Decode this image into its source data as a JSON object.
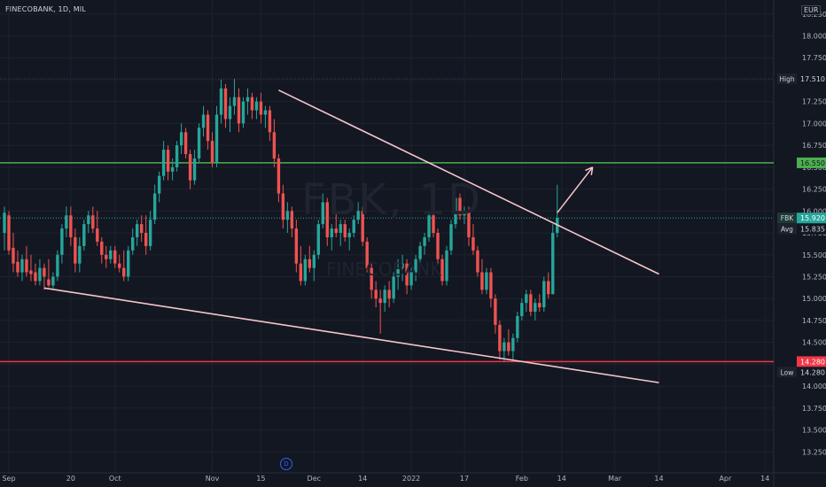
{
  "header": {
    "ticker_label": "FINECOBANK, 1D, MIL",
    "currency": "EUR"
  },
  "watermark": {
    "symbol": "FBK, 1D",
    "name": "FINECOBANK"
  },
  "markers": {
    "dividend_label": "D"
  },
  "colors": {
    "background": "#131722",
    "up": "#26a69a",
    "down": "#ef5350",
    "grid": "#1e222d",
    "axis_text": "#b2b5be",
    "resistance": "#4caf50",
    "support": "#f23645",
    "trendline": "#f5c6cb",
    "price_line": "#26a69a"
  },
  "chart_data": {
    "type": "candlestick",
    "title": "",
    "xlabel": "",
    "ylabel": "",
    "ylim": [
      12.95,
      18.4
    ],
    "yticks": [
      13.0,
      13.25,
      13.5,
      13.75,
      14.0,
      14.25,
      14.5,
      14.75,
      15.0,
      15.25,
      15.5,
      15.75,
      16.0,
      16.25,
      16.5,
      16.75,
      17.0,
      17.25,
      17.5,
      17.75,
      18.0,
      18.25
    ],
    "ytick_labels": [
      "13.000",
      "13.250",
      "13.500",
      "13.750",
      "14.000",
      "14.250",
      "14.500",
      "14.750",
      "15.000",
      "15.250",
      "15.500",
      "15.750",
      "16.000",
      "16.250",
      "16.500",
      "16.750",
      "17.000",
      "17.250",
      "17.500",
      "17.750",
      "18.000",
      "18.250"
    ],
    "xlim": [
      0,
      178
    ],
    "xticks": [
      {
        "x": 1,
        "label": "Sep"
      },
      {
        "x": 15,
        "label": "20"
      },
      {
        "x": 25,
        "label": "Oct"
      },
      {
        "x": 47,
        "label": "Nov"
      },
      {
        "x": 58,
        "label": "15"
      },
      {
        "x": 70,
        "label": "Dec"
      },
      {
        "x": 81,
        "label": "14"
      },
      {
        "x": 92,
        "label": "2022"
      },
      {
        "x": 104,
        "label": "17"
      },
      {
        "x": 117,
        "label": "Feb"
      },
      {
        "x": 126,
        "label": "14"
      },
      {
        "x": 138,
        "label": "Mar"
      },
      {
        "x": 148,
        "label": "14"
      },
      {
        "x": 163,
        "label": "Apr"
      },
      {
        "x": 172,
        "label": "14"
      }
    ],
    "candles": [
      {
        "x": 0,
        "o": 15.75,
        "h": 16.05,
        "l": 15.55,
        "c": 15.98
      },
      {
        "x": 1,
        "o": 15.95,
        "h": 16.0,
        "l": 15.5,
        "c": 15.55
      },
      {
        "x": 2,
        "o": 15.58,
        "h": 15.75,
        "l": 15.3,
        "c": 15.4
      },
      {
        "x": 3,
        "o": 15.42,
        "h": 15.55,
        "l": 15.25,
        "c": 15.3
      },
      {
        "x": 4,
        "o": 15.3,
        "h": 15.5,
        "l": 15.2,
        "c": 15.45
      },
      {
        "x": 5,
        "o": 15.45,
        "h": 15.6,
        "l": 15.25,
        "c": 15.3
      },
      {
        "x": 6,
        "o": 15.32,
        "h": 15.5,
        "l": 15.2,
        "c": 15.28
      },
      {
        "x": 7,
        "o": 15.3,
        "h": 15.4,
        "l": 15.15,
        "c": 15.2
      },
      {
        "x": 8,
        "o": 15.2,
        "h": 15.45,
        "l": 15.15,
        "c": 15.35
      },
      {
        "x": 9,
        "o": 15.35,
        "h": 15.4,
        "l": 15.1,
        "c": 15.25
      },
      {
        "x": 10,
        "o": 15.22,
        "h": 15.45,
        "l": 15.13,
        "c": 15.15
      },
      {
        "x": 11,
        "o": 15.15,
        "h": 15.3,
        "l": 15.1,
        "c": 15.25
      },
      {
        "x": 12,
        "o": 15.25,
        "h": 15.55,
        "l": 15.2,
        "c": 15.5
      },
      {
        "x": 13,
        "o": 15.5,
        "h": 15.85,
        "l": 15.4,
        "c": 15.8
      },
      {
        "x": 14,
        "o": 15.8,
        "h": 16.05,
        "l": 15.7,
        "c": 15.95
      },
      {
        "x": 15,
        "o": 15.95,
        "h": 16.05,
        "l": 15.6,
        "c": 15.7
      },
      {
        "x": 16,
        "o": 15.7,
        "h": 15.8,
        "l": 15.3,
        "c": 15.4
      },
      {
        "x": 17,
        "o": 15.4,
        "h": 15.7,
        "l": 15.3,
        "c": 15.6
      },
      {
        "x": 18,
        "o": 15.6,
        "h": 15.9,
        "l": 15.55,
        "c": 15.85
      },
      {
        "x": 19,
        "o": 15.85,
        "h": 16.0,
        "l": 15.75,
        "c": 15.95
      },
      {
        "x": 20,
        "o": 15.95,
        "h": 16.05,
        "l": 15.75,
        "c": 15.8
      },
      {
        "x": 21,
        "o": 15.8,
        "h": 16.0,
        "l": 15.6,
        "c": 15.65
      },
      {
        "x": 22,
        "o": 15.65,
        "h": 15.7,
        "l": 15.4,
        "c": 15.5
      },
      {
        "x": 23,
        "o": 15.5,
        "h": 15.6,
        "l": 15.35,
        "c": 15.45
      },
      {
        "x": 24,
        "o": 15.45,
        "h": 15.6,
        "l": 15.4,
        "c": 15.55
      },
      {
        "x": 25,
        "o": 15.55,
        "h": 15.6,
        "l": 15.35,
        "c": 15.4
      },
      {
        "x": 26,
        "o": 15.4,
        "h": 15.5,
        "l": 15.3,
        "c": 15.35
      },
      {
        "x": 27,
        "o": 15.35,
        "h": 15.55,
        "l": 15.2,
        "c": 15.25
      },
      {
        "x": 28,
        "o": 15.25,
        "h": 15.6,
        "l": 15.2,
        "c": 15.55
      },
      {
        "x": 29,
        "o": 15.55,
        "h": 15.8,
        "l": 15.5,
        "c": 15.7
      },
      {
        "x": 30,
        "o": 15.7,
        "h": 15.9,
        "l": 15.6,
        "c": 15.85
      },
      {
        "x": 31,
        "o": 15.85,
        "h": 15.95,
        "l": 15.65,
        "c": 15.75
      },
      {
        "x": 32,
        "o": 15.75,
        "h": 15.95,
        "l": 15.5,
        "c": 15.6
      },
      {
        "x": 33,
        "o": 15.6,
        "h": 16.0,
        "l": 15.55,
        "c": 15.9
      },
      {
        "x": 34,
        "o": 15.9,
        "h": 16.3,
        "l": 15.85,
        "c": 16.2
      },
      {
        "x": 35,
        "o": 16.2,
        "h": 16.45,
        "l": 16.1,
        "c": 16.4
      },
      {
        "x": 36,
        "o": 16.4,
        "h": 16.8,
        "l": 16.35,
        "c": 16.7
      },
      {
        "x": 37,
        "o": 16.7,
        "h": 16.75,
        "l": 16.35,
        "c": 16.45
      },
      {
        "x": 38,
        "o": 16.45,
        "h": 16.6,
        "l": 16.35,
        "c": 16.5
      },
      {
        "x": 39,
        "o": 16.5,
        "h": 16.8,
        "l": 16.45,
        "c": 16.75
      },
      {
        "x": 40,
        "o": 16.75,
        "h": 17.0,
        "l": 16.65,
        "c": 16.9
      },
      {
        "x": 41,
        "o": 16.9,
        "h": 16.95,
        "l": 16.6,
        "c": 16.65
      },
      {
        "x": 42,
        "o": 16.65,
        "h": 16.7,
        "l": 16.25,
        "c": 16.35
      },
      {
        "x": 43,
        "o": 16.35,
        "h": 16.7,
        "l": 16.3,
        "c": 16.6
      },
      {
        "x": 44,
        "o": 16.6,
        "h": 17.0,
        "l": 16.55,
        "c": 16.95
      },
      {
        "x": 45,
        "o": 16.95,
        "h": 17.2,
        "l": 16.85,
        "c": 17.1
      },
      {
        "x": 46,
        "o": 17.1,
        "h": 17.15,
        "l": 16.7,
        "c": 16.8
      },
      {
        "x": 47,
        "o": 16.8,
        "h": 16.9,
        "l": 16.5,
        "c": 16.55
      },
      {
        "x": 48,
        "o": 16.55,
        "h": 17.2,
        "l": 16.5,
        "c": 17.1
      },
      {
        "x": 49,
        "o": 17.1,
        "h": 17.5,
        "l": 17.0,
        "c": 17.4
      },
      {
        "x": 50,
        "o": 17.4,
        "h": 17.45,
        "l": 16.95,
        "c": 17.05
      },
      {
        "x": 51,
        "o": 17.05,
        "h": 17.3,
        "l": 16.9,
        "c": 17.2
      },
      {
        "x": 52,
        "o": 17.2,
        "h": 17.51,
        "l": 17.1,
        "c": 17.3
      },
      {
        "x": 53,
        "o": 17.3,
        "h": 17.4,
        "l": 16.9,
        "c": 17.0
      },
      {
        "x": 54,
        "o": 17.0,
        "h": 17.3,
        "l": 16.95,
        "c": 17.25
      },
      {
        "x": 55,
        "o": 17.25,
        "h": 17.4,
        "l": 17.1,
        "c": 17.3
      },
      {
        "x": 56,
        "o": 17.3,
        "h": 17.35,
        "l": 17.05,
        "c": 17.15
      },
      {
        "x": 57,
        "o": 17.15,
        "h": 17.3,
        "l": 17.05,
        "c": 17.25
      },
      {
        "x": 58,
        "o": 17.25,
        "h": 17.35,
        "l": 17.0,
        "c": 17.1
      },
      {
        "x": 59,
        "o": 17.1,
        "h": 17.2,
        "l": 16.95,
        "c": 17.15
      },
      {
        "x": 60,
        "o": 17.15,
        "h": 17.2,
        "l": 16.8,
        "c": 16.9
      },
      {
        "x": 61,
        "o": 16.9,
        "h": 17.05,
        "l": 16.5,
        "c": 16.6
      },
      {
        "x": 62,
        "o": 16.6,
        "h": 16.65,
        "l": 16.1,
        "c": 16.2
      },
      {
        "x": 63,
        "o": 16.2,
        "h": 16.3,
        "l": 15.8,
        "c": 15.9
      },
      {
        "x": 64,
        "o": 15.9,
        "h": 16.1,
        "l": 15.75,
        "c": 16.0
      },
      {
        "x": 65,
        "o": 16.0,
        "h": 16.05,
        "l": 15.7,
        "c": 15.8
      },
      {
        "x": 66,
        "o": 15.8,
        "h": 15.9,
        "l": 15.3,
        "c": 15.4
      },
      {
        "x": 67,
        "o": 15.4,
        "h": 15.6,
        "l": 15.15,
        "c": 15.2
      },
      {
        "x": 68,
        "o": 15.2,
        "h": 15.5,
        "l": 15.15,
        "c": 15.45
      },
      {
        "x": 69,
        "o": 15.45,
        "h": 15.6,
        "l": 15.3,
        "c": 15.35
      },
      {
        "x": 70,
        "o": 15.35,
        "h": 15.55,
        "l": 15.2,
        "c": 15.5
      },
      {
        "x": 71,
        "o": 15.5,
        "h": 15.9,
        "l": 15.45,
        "c": 15.85
      },
      {
        "x": 72,
        "o": 15.85,
        "h": 16.2,
        "l": 15.8,
        "c": 16.1
      },
      {
        "x": 73,
        "o": 16.1,
        "h": 16.15,
        "l": 15.6,
        "c": 15.7
      },
      {
        "x": 74,
        "o": 15.7,
        "h": 15.85,
        "l": 15.55,
        "c": 15.8
      },
      {
        "x": 75,
        "o": 15.8,
        "h": 16.0,
        "l": 15.7,
        "c": 15.75
      },
      {
        "x": 76,
        "o": 15.75,
        "h": 15.9,
        "l": 15.6,
        "c": 15.85
      },
      {
        "x": 77,
        "o": 15.85,
        "h": 15.9,
        "l": 15.65,
        "c": 15.7
      },
      {
        "x": 78,
        "o": 15.7,
        "h": 15.8,
        "l": 15.55,
        "c": 15.75
      },
      {
        "x": 79,
        "o": 15.75,
        "h": 15.95,
        "l": 15.7,
        "c": 15.9
      },
      {
        "x": 80,
        "o": 15.9,
        "h": 16.1,
        "l": 15.85,
        "c": 16.0
      },
      {
        "x": 81,
        "o": 16.0,
        "h": 16.05,
        "l": 15.6,
        "c": 15.65
      },
      {
        "x": 82,
        "o": 15.65,
        "h": 15.7,
        "l": 15.3,
        "c": 15.35
      },
      {
        "x": 83,
        "o": 15.35,
        "h": 15.4,
        "l": 15.0,
        "c": 15.1
      },
      {
        "x": 84,
        "o": 15.1,
        "h": 15.2,
        "l": 14.9,
        "c": 15.0
      },
      {
        "x": 85,
        "o": 15.0,
        "h": 15.1,
        "l": 14.6,
        "c": 14.95
      },
      {
        "x": 86,
        "o": 14.95,
        "h": 15.15,
        "l": 14.85,
        "c": 15.1
      },
      {
        "x": 87,
        "o": 15.1,
        "h": 15.2,
        "l": 14.9,
        "c": 15.0
      },
      {
        "x": 88,
        "o": 15.0,
        "h": 15.3,
        "l": 14.95,
        "c": 15.25
      },
      {
        "x": 89,
        "o": 15.25,
        "h": 15.45,
        "l": 15.1,
        "c": 15.35
      },
      {
        "x": 90,
        "o": 15.35,
        "h": 15.5,
        "l": 15.2,
        "c": 15.4
      },
      {
        "x": 91,
        "o": 15.4,
        "h": 15.45,
        "l": 15.05,
        "c": 15.15
      },
      {
        "x": 92,
        "o": 15.15,
        "h": 15.35,
        "l": 15.1,
        "c": 15.3
      },
      {
        "x": 93,
        "o": 15.3,
        "h": 15.5,
        "l": 15.2,
        "c": 15.45
      },
      {
        "x": 94,
        "o": 15.45,
        "h": 15.65,
        "l": 15.4,
        "c": 15.6
      },
      {
        "x": 95,
        "o": 15.6,
        "h": 15.75,
        "l": 15.5,
        "c": 15.7
      },
      {
        "x": 96,
        "o": 15.7,
        "h": 16.0,
        "l": 15.65,
        "c": 15.95
      },
      {
        "x": 97,
        "o": 15.95,
        "h": 16.1,
        "l": 15.7,
        "c": 15.75
      },
      {
        "x": 98,
        "o": 15.75,
        "h": 15.8,
        "l": 15.4,
        "c": 15.45
      },
      {
        "x": 99,
        "o": 15.45,
        "h": 15.5,
        "l": 15.15,
        "c": 15.2
      },
      {
        "x": 100,
        "o": 15.2,
        "h": 15.6,
        "l": 15.15,
        "c": 15.55
      },
      {
        "x": 101,
        "o": 15.55,
        "h": 15.9,
        "l": 15.5,
        "c": 15.85
      },
      {
        "x": 102,
        "o": 15.85,
        "h": 16.2,
        "l": 15.8,
        "c": 16.15
      },
      {
        "x": 103,
        "o": 16.15,
        "h": 16.2,
        "l": 15.9,
        "c": 15.95
      },
      {
        "x": 104,
        "o": 15.95,
        "h": 16.05,
        "l": 15.85,
        "c": 16.0
      },
      {
        "x": 105,
        "o": 16.0,
        "h": 16.05,
        "l": 15.6,
        "c": 15.7
      },
      {
        "x": 106,
        "o": 15.7,
        "h": 15.85,
        "l": 15.5,
        "c": 15.55
      },
      {
        "x": 107,
        "o": 15.55,
        "h": 15.6,
        "l": 15.25,
        "c": 15.3
      },
      {
        "x": 108,
        "o": 15.3,
        "h": 15.45,
        "l": 15.05,
        "c": 15.1
      },
      {
        "x": 109,
        "o": 15.1,
        "h": 15.35,
        "l": 15.05,
        "c": 15.3
      },
      {
        "x": 110,
        "o": 15.3,
        "h": 15.35,
        "l": 14.9,
        "c": 15.0
      },
      {
        "x": 111,
        "o": 15.0,
        "h": 15.05,
        "l": 14.6,
        "c": 14.7
      },
      {
        "x": 112,
        "o": 14.7,
        "h": 14.75,
        "l": 14.3,
        "c": 14.4
      },
      {
        "x": 113,
        "o": 14.4,
        "h": 14.55,
        "l": 14.28,
        "c": 14.5
      },
      {
        "x": 114,
        "o": 14.5,
        "h": 14.65,
        "l": 14.35,
        "c": 14.4
      },
      {
        "x": 115,
        "o": 14.4,
        "h": 14.6,
        "l": 14.3,
        "c": 14.55
      },
      {
        "x": 116,
        "o": 14.55,
        "h": 14.85,
        "l": 14.5,
        "c": 14.8
      },
      {
        "x": 117,
        "o": 14.8,
        "h": 15.0,
        "l": 14.75,
        "c": 14.95
      },
      {
        "x": 118,
        "o": 14.95,
        "h": 15.1,
        "l": 14.85,
        "c": 15.05
      },
      {
        "x": 119,
        "o": 15.05,
        "h": 15.1,
        "l": 14.8,
        "c": 14.85
      },
      {
        "x": 120,
        "o": 14.85,
        "h": 15.0,
        "l": 14.75,
        "c": 14.95
      },
      {
        "x": 121,
        "o": 14.95,
        "h": 15.05,
        "l": 14.85,
        "c": 14.9
      },
      {
        "x": 122,
        "o": 14.9,
        "h": 15.25,
        "l": 14.85,
        "c": 15.2
      },
      {
        "x": 123,
        "o": 15.2,
        "h": 15.3,
        "l": 15.0,
        "c": 15.05
      },
      {
        "x": 124,
        "o": 15.05,
        "h": 15.85,
        "l": 15.05,
        "c": 15.75
      },
      {
        "x": 125,
        "o": 15.75,
        "h": 16.3,
        "l": 15.7,
        "c": 15.92
      }
    ],
    "horizontal_lines": [
      {
        "name": "High",
        "value": 17.51,
        "label": "17.510"
      },
      {
        "name": "Low",
        "value": 14.28,
        "label": "14.280"
      },
      {
        "name": "resistance",
        "value": 16.55,
        "label": "16.550"
      },
      {
        "name": "support",
        "value": 14.28,
        "label": "14.280"
      }
    ],
    "last_price": {
      "symbol": "FBK",
      "value": 15.92,
      "label": "15.920"
    },
    "average": {
      "name": "Avg",
      "value": 15.835,
      "label": "15.835"
    },
    "trendlines": [
      {
        "name": "upper-trendline",
        "x1": 62,
        "y1": 17.38,
        "x2": 148,
        "y2": 15.28
      },
      {
        "name": "lower-trendline",
        "x1": 9,
        "y1": 15.12,
        "x2": 148,
        "y2": 14.04
      }
    ],
    "arrow": {
      "x1": 125,
      "y1": 15.98,
      "x2": 133,
      "y2": 16.5
    },
    "dividend_marker_x": 64,
    "grid": true
  }
}
